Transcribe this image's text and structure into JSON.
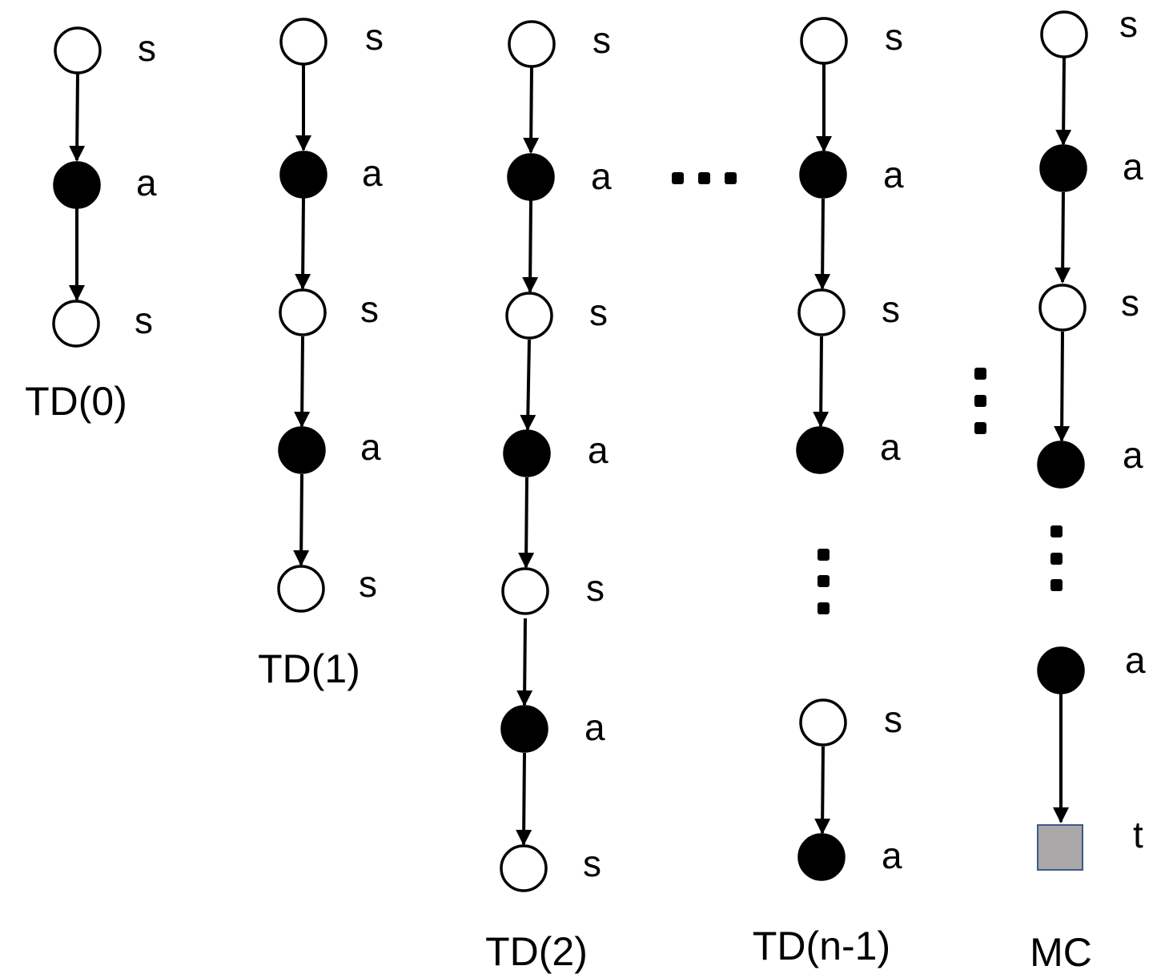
{
  "diagram": {
    "columns": [
      {
        "title": "TD(0)",
        "nodes": [
          {
            "type": "state",
            "label": "s"
          },
          {
            "type": "action",
            "label": "a"
          },
          {
            "type": "state",
            "label": "s"
          }
        ]
      },
      {
        "title": "TD(1)",
        "nodes": [
          {
            "type": "state",
            "label": "s"
          },
          {
            "type": "action",
            "label": "a"
          },
          {
            "type": "state",
            "label": "s"
          },
          {
            "type": "action",
            "label": "a"
          },
          {
            "type": "state",
            "label": "s"
          }
        ]
      },
      {
        "title": "TD(2)",
        "nodes": [
          {
            "type": "state",
            "label": "s"
          },
          {
            "type": "action",
            "label": "a"
          },
          {
            "type": "state",
            "label": "s"
          },
          {
            "type": "action",
            "label": "a"
          },
          {
            "type": "state",
            "label": "s"
          },
          {
            "type": "action",
            "label": "a"
          },
          {
            "type": "state",
            "label": "s"
          }
        ]
      },
      {
        "title": "TD(n-1)",
        "nodes": [
          {
            "type": "state",
            "label": "s"
          },
          {
            "type": "action",
            "label": "a"
          },
          {
            "type": "state",
            "label": "s"
          },
          {
            "type": "action",
            "label": "a"
          },
          {
            "type": "state",
            "label": "s"
          },
          {
            "type": "action",
            "label": "a"
          }
        ]
      },
      {
        "title": "MC",
        "nodes": [
          {
            "type": "state",
            "label": "s"
          },
          {
            "type": "action",
            "label": "a"
          },
          {
            "type": "state",
            "label": "s"
          },
          {
            "type": "action",
            "label": "a"
          },
          {
            "type": "action",
            "label": "a"
          },
          {
            "type": "terminal",
            "label": "t"
          }
        ]
      }
    ],
    "terminal_color": "#aaa8a8",
    "terminal_border_color": "#3d5a8a"
  }
}
